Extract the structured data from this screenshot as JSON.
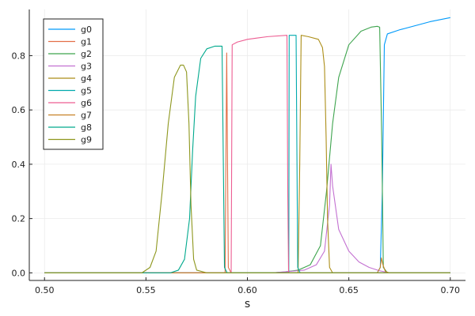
{
  "chart_data": {
    "type": "line",
    "title": "",
    "xlabel": "s",
    "ylabel": "",
    "xlim": [
      0.4925,
      0.7075
    ],
    "ylim": [
      -0.028,
      0.97
    ],
    "xticks": [
      0.5,
      0.55,
      0.6,
      0.65,
      0.7
    ],
    "xtick_labels": [
      "0.50",
      "0.55",
      "0.60",
      "0.65",
      "0.70"
    ],
    "yticks": [
      0,
      0.2,
      0.4,
      0.6,
      0.8
    ],
    "ytick_labels": [
      "0.0",
      "0.2",
      "0.4",
      "0.6",
      "0.8"
    ],
    "grid": true,
    "legend_position": "top-left",
    "series": [
      {
        "name": "g0",
        "color": "#009AFA",
        "points": [
          [
            0.5,
            0
          ],
          [
            0.664,
            0
          ],
          [
            0.6655,
            0.02
          ],
          [
            0.6665,
            0.3
          ],
          [
            0.6675,
            0.84
          ],
          [
            0.669,
            0.88
          ],
          [
            0.675,
            0.895
          ],
          [
            0.69,
            0.925
          ],
          [
            0.7,
            0.94
          ]
        ]
      },
      {
        "name": "g1",
        "color": "#E36F47",
        "points": [
          [
            0.5,
            0
          ],
          [
            0.589,
            0
          ],
          [
            0.5898,
            0.81
          ],
          [
            0.5906,
            0.02
          ],
          [
            0.592,
            0
          ],
          [
            0.7,
            0
          ]
        ]
      },
      {
        "name": "g2",
        "color": "#3EA44E",
        "points": [
          [
            0.5,
            0
          ],
          [
            0.612,
            0
          ],
          [
            0.618,
            0.003
          ],
          [
            0.625,
            0.01
          ],
          [
            0.631,
            0.03
          ],
          [
            0.636,
            0.1
          ],
          [
            0.639,
            0.3
          ],
          [
            0.642,
            0.55
          ],
          [
            0.645,
            0.72
          ],
          [
            0.65,
            0.84
          ],
          [
            0.656,
            0.89
          ],
          [
            0.661,
            0.905
          ],
          [
            0.664,
            0.908
          ],
          [
            0.6652,
            0.905
          ],
          [
            0.6662,
            0.5
          ],
          [
            0.667,
            0.02
          ],
          [
            0.669,
            0
          ],
          [
            0.7,
            0
          ]
        ]
      },
      {
        "name": "g3",
        "color": "#C371D1",
        "points": [
          [
            0.5,
            0
          ],
          [
            0.612,
            0
          ],
          [
            0.62,
            0.005
          ],
          [
            0.628,
            0.01
          ],
          [
            0.634,
            0.03
          ],
          [
            0.638,
            0.08
          ],
          [
            0.6405,
            0.25
          ],
          [
            0.6412,
            0.4
          ],
          [
            0.642,
            0.32
          ],
          [
            0.645,
            0.16
          ],
          [
            0.65,
            0.08
          ],
          [
            0.655,
            0.04
          ],
          [
            0.66,
            0.02
          ],
          [
            0.665,
            0.008
          ],
          [
            0.67,
            0
          ],
          [
            0.7,
            0
          ]
        ]
      },
      {
        "name": "g4",
        "color": "#AC8E18",
        "points": [
          [
            0.5,
            0
          ],
          [
            0.625,
            0
          ],
          [
            0.6258,
            0.4
          ],
          [
            0.6265,
            0.875
          ],
          [
            0.63,
            0.87
          ],
          [
            0.635,
            0.86
          ],
          [
            0.637,
            0.83
          ],
          [
            0.638,
            0.76
          ],
          [
            0.6388,
            0.5
          ],
          [
            0.6395,
            0.2
          ],
          [
            0.6405,
            0.02
          ],
          [
            0.642,
            0
          ],
          [
            0.7,
            0
          ]
        ]
      },
      {
        "name": "g5",
        "color": "#00A9AD",
        "points": [
          [
            0.5,
            0
          ],
          [
            0.6204,
            0
          ],
          [
            0.6206,
            0.875
          ],
          [
            0.624,
            0.875
          ],
          [
            0.6248,
            0.02
          ],
          [
            0.626,
            0
          ],
          [
            0.7,
            0
          ]
        ]
      },
      {
        "name": "g6",
        "color": "#ED5D92",
        "points": [
          [
            0.5,
            0
          ],
          [
            0.592,
            0
          ],
          [
            0.5925,
            0.84
          ],
          [
            0.595,
            0.85
          ],
          [
            0.6,
            0.86
          ],
          [
            0.605,
            0.865
          ],
          [
            0.61,
            0.87
          ],
          [
            0.6195,
            0.875
          ],
          [
            0.6199,
            0.3
          ],
          [
            0.6203,
            0
          ],
          [
            0.7,
            0
          ]
        ]
      },
      {
        "name": "g7",
        "color": "#C68125",
        "points": [
          [
            0.5,
            0
          ],
          [
            0.664,
            0
          ],
          [
            0.6655,
            0.02
          ],
          [
            0.666,
            0.055
          ],
          [
            0.6668,
            0.03
          ],
          [
            0.668,
            0.005
          ],
          [
            0.67,
            0
          ],
          [
            0.7,
            0
          ]
        ]
      },
      {
        "name": "g8",
        "color": "#00A98D",
        "points": [
          [
            0.5,
            0
          ],
          [
            0.562,
            0
          ],
          [
            0.566,
            0.01
          ],
          [
            0.569,
            0.05
          ],
          [
            0.5715,
            0.2
          ],
          [
            0.573,
            0.45
          ],
          [
            0.5745,
            0.65
          ],
          [
            0.577,
            0.79
          ],
          [
            0.58,
            0.825
          ],
          [
            0.584,
            0.835
          ],
          [
            0.5875,
            0.835
          ],
          [
            0.588,
            0.5
          ],
          [
            0.5887,
            0.02
          ],
          [
            0.59,
            0
          ],
          [
            0.7,
            0
          ]
        ]
      },
      {
        "name": "g9",
        "color": "#8E971E",
        "points": [
          [
            0.5,
            0
          ],
          [
            0.548,
            0
          ],
          [
            0.552,
            0.02
          ],
          [
            0.555,
            0.08
          ],
          [
            0.558,
            0.3
          ],
          [
            0.561,
            0.55
          ],
          [
            0.564,
            0.72
          ],
          [
            0.567,
            0.765
          ],
          [
            0.5685,
            0.765
          ],
          [
            0.57,
            0.74
          ],
          [
            0.5712,
            0.55
          ],
          [
            0.5722,
            0.25
          ],
          [
            0.5735,
            0.05
          ],
          [
            0.575,
            0.01
          ],
          [
            0.58,
            0
          ],
          [
            0.7,
            0
          ]
        ]
      }
    ]
  }
}
